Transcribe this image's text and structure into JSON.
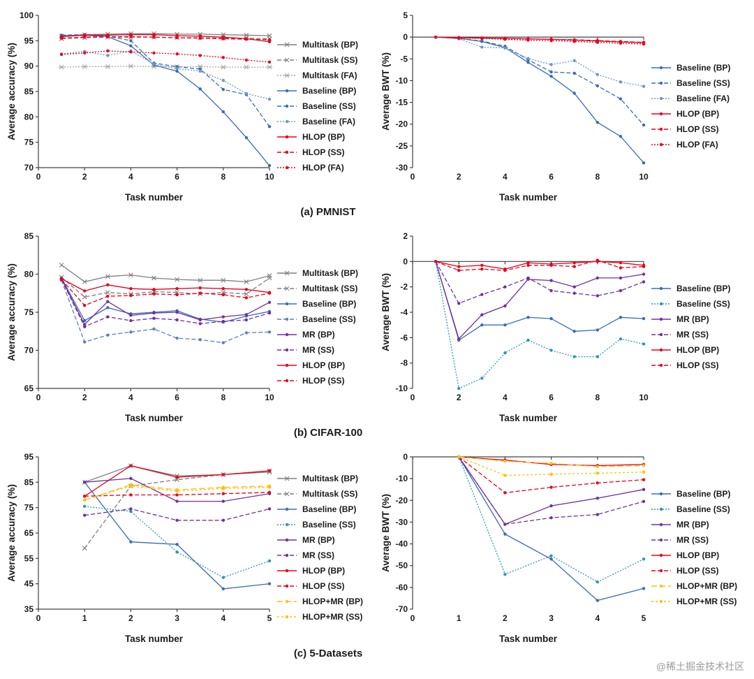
{
  "watermark": "@稀土掘金技术社区",
  "panels": [
    {
      "caption": "(a) PMNIST"
    },
    {
      "caption": "(b) CIFAR-100"
    },
    {
      "caption": "(c) 5-Datasets"
    }
  ],
  "chart_data": [
    {
      "type": "line",
      "panel": "(a) PMNIST",
      "xlabel": "Task number",
      "ylabel": "Average accuracy (%)",
      "xlim": [
        0,
        10
      ],
      "ylim": [
        70,
        100
      ],
      "x_ticks": [
        0,
        2,
        4,
        6,
        8,
        10
      ],
      "y_ticks": [
        70,
        75,
        80,
        85,
        90,
        95,
        100
      ],
      "grid": false,
      "legend_position": "right",
      "x": [
        1,
        2,
        3,
        4,
        5,
        6,
        7,
        8,
        9,
        10
      ],
      "series": [
        {
          "name": "Multitask (BP)",
          "color": "#7F7F7F",
          "dash": "",
          "marker": "x",
          "values": [
            95.9,
            96.2,
            96.3,
            96.4,
            96.4,
            96.3,
            96.3,
            96.2,
            96.1,
            96.0
          ]
        },
        {
          "name": "Multitask (SS)",
          "color": "#7F7F7F",
          "dash": "6,3",
          "marker": "x",
          "values": [
            95.4,
            95.6,
            95.7,
            95.7,
            95.7,
            95.6,
            95.6,
            95.5,
            95.5,
            95.4
          ]
        },
        {
          "name": "Multitask (FA)",
          "color": "#A6A6A6",
          "dash": "2,2",
          "marker": "asterisk",
          "values": [
            89.8,
            89.9,
            89.9,
            90.0,
            89.9,
            89.9,
            89.9,
            89.8,
            89.8,
            89.8
          ]
        },
        {
          "name": "Baseline (BP)",
          "color": "#3A6BB5",
          "dash": "",
          "marker": "dot",
          "values": [
            96.0,
            96.1,
            95.8,
            94.0,
            90.2,
            89.0,
            85.5,
            81.0,
            75.9,
            70.4
          ]
        },
        {
          "name": "Baseline (SS)",
          "color": "#3A6BB5",
          "dash": "6,3",
          "marker": "dot",
          "values": [
            96.1,
            96.2,
            95.9,
            95.0,
            90.6,
            89.9,
            89.4,
            85.4,
            84.4,
            78.1
          ]
        },
        {
          "name": "Baseline (FA)",
          "color": "#6E96C8",
          "dash": "2,2",
          "marker": "dot",
          "values": [
            92.4,
            92.9,
            92.1,
            93.0,
            90.4,
            89.5,
            89.0,
            87.2,
            84.6,
            83.5
          ]
        },
        {
          "name": "HLOP (BP)",
          "color": "#E8001C",
          "dash": "",
          "marker": "dot",
          "values": [
            95.8,
            96.1,
            96.1,
            96.2,
            96.2,
            96.0,
            95.9,
            95.7,
            95.4,
            94.8
          ]
        },
        {
          "name": "HLOP (SS)",
          "color": "#E8001C",
          "dash": "6,3",
          "marker": "dot",
          "values": [
            95.5,
            95.7,
            95.8,
            95.8,
            95.7,
            95.6,
            95.5,
            95.4,
            95.3,
            95.2
          ]
        },
        {
          "name": "HLOP (FA)",
          "color": "#E8001C",
          "dash": "2,2",
          "marker": "dot",
          "values": [
            92.3,
            92.6,
            93.0,
            92.8,
            92.6,
            92.4,
            92.1,
            91.7,
            91.2,
            90.8
          ]
        }
      ]
    },
    {
      "type": "line",
      "panel": "(a) PMNIST",
      "xlabel": "Task number",
      "ylabel": "Average BWT (%)",
      "xlim": [
        0,
        10
      ],
      "ylim": [
        -30,
        5
      ],
      "x_ticks": [
        0,
        2,
        4,
        6,
        8,
        10
      ],
      "y_ticks": [
        5,
        0,
        -5,
        -10,
        -15,
        -20,
        -25,
        -30
      ],
      "grid": false,
      "legend_position": "right",
      "x": [
        1,
        2,
        3,
        4,
        5,
        6,
        7,
        8,
        9,
        10
      ],
      "series": [
        {
          "name": "Baseline (BP)",
          "color": "#3A6BB5",
          "dash": "",
          "marker": "dot",
          "values": [
            0,
            -0.3,
            -1.0,
            -2.4,
            -5.8,
            -9.0,
            -12.9,
            -19.6,
            -22.8,
            -28.9
          ]
        },
        {
          "name": "Baseline (SS)",
          "color": "#3A6BB5",
          "dash": "6,3",
          "marker": "dot",
          "values": [
            0,
            -0.3,
            -0.9,
            -2.1,
            -5.2,
            -8.0,
            -8.3,
            -11.2,
            -14.2,
            -20.2
          ]
        },
        {
          "name": "Baseline (FA)",
          "color": "#6E96C8",
          "dash": "2,2",
          "marker": "dot",
          "values": [
            0,
            -0.4,
            -2.3,
            -2.5,
            -4.9,
            -6.3,
            -5.4,
            -8.6,
            -10.3,
            -11.3
          ]
        },
        {
          "name": "HLOP (BP)",
          "color": "#E8001C",
          "dash": "",
          "marker": "dot",
          "values": [
            0,
            -0.1,
            -0.2,
            -0.3,
            -0.4,
            -0.5,
            -0.7,
            -0.9,
            -1.1,
            -1.3
          ]
        },
        {
          "name": "HLOP (SS)",
          "color": "#E8001C",
          "dash": "6,3",
          "marker": "dot",
          "values": [
            0,
            -0.1,
            -0.2,
            -0.3,
            -0.4,
            -0.5,
            -0.6,
            -0.8,
            -1.0,
            -1.2
          ]
        },
        {
          "name": "HLOP (FA)",
          "color": "#E8001C",
          "dash": "2,2",
          "marker": "dot",
          "values": [
            0,
            -0.2,
            -0.3,
            -0.5,
            -0.7,
            -0.8,
            -1.0,
            -1.2,
            -1.4,
            -1.6
          ]
        }
      ]
    },
    {
      "type": "line",
      "panel": "(b) CIFAR-100",
      "xlabel": "Task number",
      "ylabel": "Average accuracy (%)",
      "xlim": [
        0,
        10
      ],
      "ylim": [
        65,
        85
      ],
      "x_ticks": [
        0,
        2,
        4,
        6,
        8,
        10
      ],
      "y_ticks": [
        65,
        70,
        75,
        80,
        85
      ],
      "grid": false,
      "legend_position": "right",
      "x": [
        1,
        2,
        3,
        4,
        5,
        6,
        7,
        8,
        9,
        10
      ],
      "series": [
        {
          "name": "Multitask (BP)",
          "color": "#7F7F7F",
          "dash": "",
          "marker": "x",
          "values": [
            81.2,
            79.0,
            79.7,
            79.9,
            79.5,
            79.3,
            79.2,
            79.2,
            79.0,
            79.8
          ]
        },
        {
          "name": "Multitask (SS)",
          "color": "#7F7F7F",
          "dash": "6,3",
          "marker": "x",
          "values": [
            79.6,
            77.0,
            77.6,
            77.4,
            77.7,
            77.6,
            77.4,
            77.6,
            77.4,
            79.5
          ]
        },
        {
          "name": "Baseline (BP)",
          "color": "#3A6BB5",
          "dash": "",
          "marker": "dot",
          "values": [
            79.5,
            73.9,
            75.6,
            74.8,
            75.0,
            75.2,
            74.1,
            73.7,
            74.5,
            75.1
          ]
        },
        {
          "name": "Baseline (SS)",
          "color": "#5A7FC4",
          "dash": "6,3",
          "marker": "dot",
          "values": [
            79.2,
            71.1,
            72.0,
            72.4,
            72.8,
            71.6,
            71.4,
            71.0,
            72.3,
            72.4
          ]
        },
        {
          "name": "MR (BP)",
          "color": "#7030A0",
          "dash": "",
          "marker": "dot",
          "values": [
            79.4,
            73.4,
            76.4,
            74.6,
            74.9,
            75.0,
            74.0,
            74.4,
            74.7,
            76.3
          ]
        },
        {
          "name": "MR (SS)",
          "color": "#7030A0",
          "dash": "6,3",
          "marker": "dot",
          "values": [
            79.3,
            73.1,
            74.4,
            73.9,
            74.2,
            74.0,
            73.5,
            73.8,
            74.0,
            74.9
          ]
        },
        {
          "name": "HLOP (BP)",
          "color": "#E8001C",
          "dash": "",
          "marker": "dot",
          "values": [
            79.4,
            77.8,
            78.6,
            78.1,
            78.0,
            78.1,
            78.2,
            78.1,
            78.0,
            77.6
          ]
        },
        {
          "name": "HLOP (SS)",
          "color": "#E8001C",
          "dash": "6,3",
          "marker": "dot",
          "values": [
            79.3,
            75.9,
            77.1,
            77.2,
            77.4,
            77.3,
            77.5,
            77.3,
            76.9,
            77.5
          ]
        }
      ]
    },
    {
      "type": "line",
      "panel": "(b) CIFAR-100",
      "xlabel": "Task number",
      "ylabel": "Average BWT (%)",
      "xlim": [
        0,
        10
      ],
      "ylim": [
        -10,
        2
      ],
      "x_ticks": [
        0,
        2,
        4,
        6,
        8,
        10
      ],
      "y_ticks": [
        2,
        0,
        -2,
        -4,
        -6,
        -8,
        -10
      ],
      "grid": false,
      "legend_position": "right",
      "x": [
        1,
        2,
        3,
        4,
        5,
        6,
        7,
        8,
        9,
        10
      ],
      "series": [
        {
          "name": "Baseline (BP)",
          "color": "#3A6BB5",
          "dash": "",
          "marker": "dot",
          "values": [
            0,
            -6.2,
            -5.0,
            -5.0,
            -4.4,
            -4.5,
            -5.5,
            -5.4,
            -4.4,
            -4.5
          ]
        },
        {
          "name": "Baseline (SS)",
          "color": "#2E96B5",
          "dash": "2,2",
          "marker": "dot",
          "values": [
            0,
            -10.0,
            -9.2,
            -7.2,
            -6.2,
            -7.0,
            -7.5,
            -7.5,
            -6.1,
            -6.5
          ]
        },
        {
          "name": "MR (BP)",
          "color": "#7030A0",
          "dash": "",
          "marker": "dot",
          "values": [
            0,
            -6.1,
            -4.2,
            -3.5,
            -1.4,
            -1.5,
            -2.0,
            -1.3,
            -1.3,
            -1.0
          ]
        },
        {
          "name": "MR (SS)",
          "color": "#7030A0",
          "dash": "6,3",
          "marker": "dot",
          "values": [
            0,
            -3.3,
            -2.6,
            -2.0,
            -1.3,
            -2.3,
            -2.5,
            -2.7,
            -2.3,
            -1.6
          ]
        },
        {
          "name": "HLOP (BP)",
          "color": "#E8001C",
          "dash": "",
          "marker": "dot",
          "values": [
            0,
            -0.4,
            -0.3,
            -0.6,
            -0.1,
            -0.2,
            -0.1,
            0.0,
            -0.1,
            -0.3
          ]
        },
        {
          "name": "HLOP (SS)",
          "color": "#E8001C",
          "dash": "6,3",
          "marker": "dot",
          "values": [
            0,
            -0.7,
            -0.6,
            -0.7,
            -0.3,
            -0.3,
            -0.4,
            0.1,
            -0.5,
            -0.4
          ]
        }
      ]
    },
    {
      "type": "line",
      "panel": "(c) 5-Datasets",
      "xlabel": "Task number",
      "ylabel": "Average accuracy (%)",
      "xlim": [
        0,
        5
      ],
      "ylim": [
        35,
        95
      ],
      "x_ticks": [
        0,
        1,
        2,
        3,
        4,
        5
      ],
      "y_ticks": [
        35,
        45,
        55,
        65,
        75,
        85,
        95
      ],
      "grid": false,
      "legend_position": "right",
      "x": [
        1,
        2,
        3,
        4,
        5
      ],
      "series": [
        {
          "name": "Multitask (BP)",
          "color": "#7F7F7F",
          "dash": "",
          "marker": "x",
          "values": [
            85.0,
            91.5,
            87.5,
            88.0,
            89.0
          ]
        },
        {
          "name": "Multitask (SS)",
          "color": "#7F7F7F",
          "dash": "6,3",
          "marker": "x",
          "values": [
            59.0,
            83.5,
            86.0,
            88.0,
            89.5
          ]
        },
        {
          "name": "Baseline (BP)",
          "color": "#3A6BB5",
          "dash": "",
          "marker": "dot",
          "values": [
            85.0,
            61.5,
            60.5,
            43.0,
            45.0
          ]
        },
        {
          "name": "Baseline (SS)",
          "color": "#2E96B5",
          "dash": "2,2",
          "marker": "dot",
          "values": [
            75.5,
            73.5,
            57.5,
            47.5,
            54.0
          ]
        },
        {
          "name": "MR (BP)",
          "color": "#7030A0",
          "dash": "",
          "marker": "dot",
          "values": [
            85.0,
            86.5,
            77.5,
            77.5,
            80.5
          ]
        },
        {
          "name": "MR (SS)",
          "color": "#7030A0",
          "dash": "6,3",
          "marker": "dot",
          "values": [
            72.0,
            74.5,
            70.0,
            70.0,
            74.5
          ]
        },
        {
          "name": "HLOP (BP)",
          "color": "#E8001C",
          "dash": "",
          "marker": "dot",
          "values": [
            79.5,
            91.5,
            87.0,
            88.0,
            89.5
          ]
        },
        {
          "name": "HLOP (SS)",
          "color": "#E8001C",
          "dash": "6,3",
          "marker": "dot",
          "values": [
            79.5,
            80.0,
            80.0,
            80.5,
            81.0
          ]
        },
        {
          "name": "HLOP+MR (BP)",
          "color": "#FFC000",
          "dash": "8,4",
          "marker": "dot",
          "values": [
            78.0,
            84.0,
            82.0,
            83.0,
            83.5
          ]
        },
        {
          "name": "HLOP+MR (SS)",
          "color": "#FFC000",
          "dash": "3,3",
          "marker": "dot",
          "values": [
            78.0,
            83.5,
            81.5,
            82.5,
            83.0
          ]
        }
      ]
    },
    {
      "type": "line",
      "panel": "(c) 5-Datasets",
      "xlabel": "Task number",
      "ylabel": "Average BWT (%)",
      "xlim": [
        0,
        5
      ],
      "ylim": [
        -70,
        0
      ],
      "x_ticks": [
        0,
        1,
        2,
        3,
        4,
        5
      ],
      "y_ticks": [
        0,
        -10,
        -20,
        -30,
        -40,
        -50,
        -60,
        -70
      ],
      "grid": false,
      "legend_position": "right",
      "x": [
        1,
        2,
        3,
        4,
        5
      ],
      "series": [
        {
          "name": "Baseline (BP)",
          "color": "#3A6BB5",
          "dash": "",
          "marker": "dot",
          "values": [
            0,
            -35.5,
            -47.0,
            -66.0,
            -60.5
          ]
        },
        {
          "name": "Baseline (SS)",
          "color": "#2E96B5",
          "dash": "2,2",
          "marker": "dot",
          "values": [
            0,
            -54.0,
            -45.5,
            -57.5,
            -47.0
          ]
        },
        {
          "name": "MR (BP)",
          "color": "#7030A0",
          "dash": "",
          "marker": "dot",
          "values": [
            0,
            -31.0,
            -22.5,
            -19.0,
            -15.0
          ]
        },
        {
          "name": "MR (SS)",
          "color": "#7030A0",
          "dash": "6,3",
          "marker": "dot",
          "values": [
            0,
            -31.0,
            -28.0,
            -26.5,
            -20.5
          ]
        },
        {
          "name": "HLOP (BP)",
          "color": "#E8001C",
          "dash": "",
          "marker": "dot",
          "values": [
            0,
            -1.5,
            -3.5,
            -4.0,
            -3.5
          ]
        },
        {
          "name": "HLOP (SS)",
          "color": "#E8001C",
          "dash": "6,3",
          "marker": "dot",
          "values": [
            0,
            -16.5,
            -14.0,
            -12.0,
            -10.5
          ]
        },
        {
          "name": "HLOP+MR (BP)",
          "color": "#FFC000",
          "dash": "8,4",
          "marker": "dot",
          "values": [
            0,
            -2.0,
            -3.0,
            -4.5,
            -4.0
          ]
        },
        {
          "name": "HLOP+MR (SS)",
          "color": "#FFC000",
          "dash": "3,3",
          "marker": "dot",
          "values": [
            0,
            -8.5,
            -8.0,
            -7.5,
            -7.0
          ]
        }
      ]
    }
  ]
}
